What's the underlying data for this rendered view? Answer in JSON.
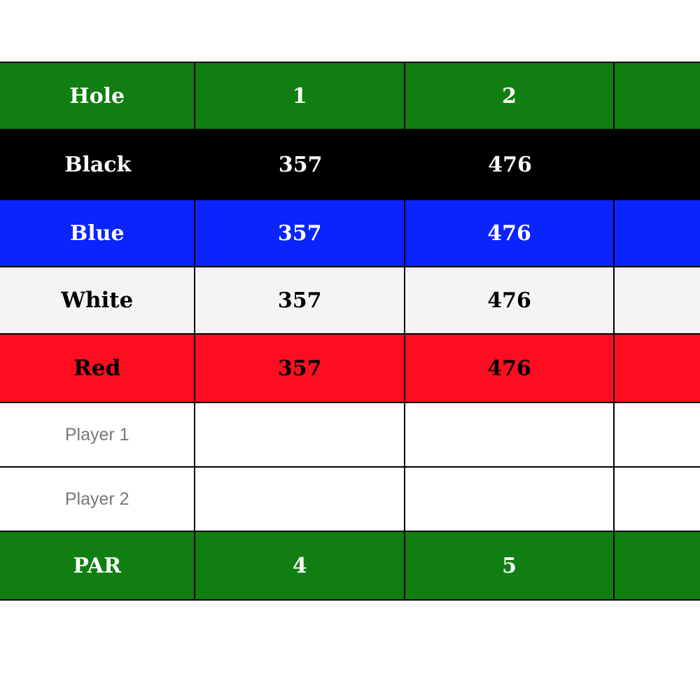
{
  "scorecard": {
    "colors": {
      "header_green": "#117e12",
      "black_tee": "#000000",
      "blue_tee": "#0b23fd",
      "white_tee": "#f4f4f4",
      "red_tee": "#fd0d1f",
      "player_label": "#777777"
    },
    "hole_row": {
      "label": "Hole",
      "holes": [
        "1",
        "2",
        ""
      ]
    },
    "tees": [
      {
        "label": "Black",
        "yardages": [
          "357",
          "476",
          ""
        ]
      },
      {
        "label": "Blue",
        "yardages": [
          "357",
          "476",
          ""
        ]
      },
      {
        "label": "White",
        "yardages": [
          "357",
          "476",
          ""
        ]
      },
      {
        "label": "Red",
        "yardages": [
          "357",
          "476",
          ""
        ]
      }
    ],
    "players": [
      {
        "label": "Player 1",
        "scores": [
          "",
          "",
          ""
        ]
      },
      {
        "label": "Player 2",
        "scores": [
          "",
          "",
          ""
        ]
      }
    ],
    "par_row": {
      "label": "PAR",
      "pars": [
        "4",
        "5",
        ""
      ]
    }
  }
}
